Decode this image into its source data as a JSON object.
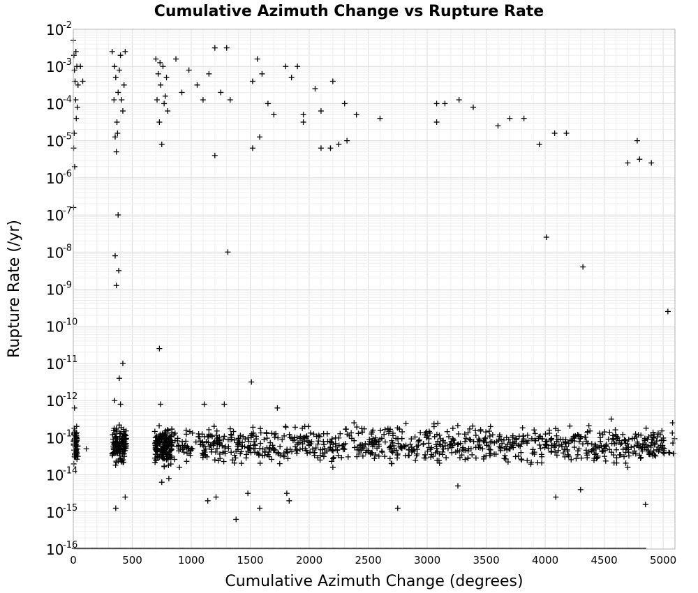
{
  "chart_data": {
    "type": "scatter",
    "title": "Cumulative Azimuth Change vs Rupture Rate",
    "xlabel": "Cumulative Azimuth Change (degrees)",
    "ylabel": "Rupture Rate (/yr)",
    "xlim": [
      0,
      5100
    ],
    "ylim_log10": [
      -16,
      -2
    ],
    "y_scale": "log",
    "grid": true,
    "marker": "plus",
    "marker_color": "#000000",
    "x_ticks": [
      "0",
      "500",
      "1000",
      "1500",
      "2000",
      "2500",
      "3000",
      "3500",
      "4000",
      "4500",
      "5000"
    ],
    "y_ticks": [
      {
        "base": "10",
        "exp": "-2"
      },
      {
        "base": "10",
        "exp": "-3"
      },
      {
        "base": "10",
        "exp": "-4"
      },
      {
        "base": "10",
        "exp": "-5"
      },
      {
        "base": "10",
        "exp": "-6"
      },
      {
        "base": "10",
        "exp": "-7"
      },
      {
        "base": "10",
        "exp": "-8"
      },
      {
        "base": "10",
        "exp": "-9"
      },
      {
        "base": "10",
        "exp": "-10"
      },
      {
        "base": "10",
        "exp": "-11"
      },
      {
        "base": "10",
        "exp": "-12"
      },
      {
        "base": "10",
        "exp": "-13"
      },
      {
        "base": "10",
        "exp": "-14"
      },
      {
        "base": "10",
        "exp": "-15"
      },
      {
        "base": "10",
        "exp": "-16"
      }
    ],
    "points_log10": [
      [
        0,
        -2.3
      ],
      [
        5,
        -2.7
      ],
      [
        10,
        -3.1
      ],
      [
        15,
        -3.4
      ],
      [
        20,
        -3.9
      ],
      [
        25,
        -4.4
      ],
      [
        8,
        -4.8
      ],
      [
        3,
        -5.2
      ],
      [
        12,
        -5.7
      ],
      [
        2,
        -6.8
      ],
      [
        30,
        -3.0
      ],
      [
        40,
        -3.5
      ],
      [
        60,
        -3.0
      ],
      [
        80,
        -3.4
      ],
      [
        22,
        -2.6
      ],
      [
        35,
        -4.1
      ],
      [
        330,
        -2.6
      ],
      [
        350,
        -3.0
      ],
      [
        360,
        -3.3
      ],
      [
        380,
        -3.7
      ],
      [
        400,
        -2.7
      ],
      [
        410,
        -3.9
      ],
      [
        420,
        -4.2
      ],
      [
        370,
        -4.5
      ],
      [
        390,
        -3.1
      ],
      [
        430,
        -3.5
      ],
      [
        440,
        -2.6
      ],
      [
        345,
        -3.9
      ],
      [
        355,
        -4.9
      ],
      [
        375,
        -4.8
      ],
      [
        365,
        -5.3
      ],
      [
        700,
        -2.8
      ],
      [
        720,
        -3.2
      ],
      [
        740,
        -3.5
      ],
      [
        760,
        -3.0
      ],
      [
        780,
        -3.8
      ],
      [
        800,
        -4.2
      ],
      [
        730,
        -4.5
      ],
      [
        750,
        -5.1
      ],
      [
        770,
        -4.0
      ],
      [
        790,
        -3.3
      ],
      [
        710,
        -3.9
      ],
      [
        735,
        -2.9
      ],
      [
        870,
        -2.8
      ],
      [
        920,
        -3.7
      ],
      [
        980,
        -3.1
      ],
      [
        1050,
        -3.5
      ],
      [
        1100,
        -3.9
      ],
      [
        1150,
        -3.2
      ],
      [
        1200,
        -2.5
      ],
      [
        1250,
        -3.7
      ],
      [
        1300,
        -2.5
      ],
      [
        1330,
        -3.9
      ],
      [
        1200,
        -5.4
      ],
      [
        1520,
        -3.4
      ],
      [
        1560,
        -2.8
      ],
      [
        1600,
        -3.2
      ],
      [
        1650,
        -4.0
      ],
      [
        1700,
        -4.3
      ],
      [
        1800,
        -3.0
      ],
      [
        1850,
        -3.3
      ],
      [
        1900,
        -3.0
      ],
      [
        1950,
        -4.3
      ],
      [
        2050,
        -3.6
      ],
      [
        2100,
        -4.2
      ],
      [
        2200,
        -3.4
      ],
      [
        2300,
        -4.0
      ],
      [
        2400,
        -4.3
      ],
      [
        1520,
        -5.2
      ],
      [
        1580,
        -4.9
      ],
      [
        1950,
        -4.5
      ],
      [
        2100,
        -5.2
      ],
      [
        2180,
        -5.2
      ],
      [
        2250,
        -5.1
      ],
      [
        2320,
        -5.0
      ],
      [
        3080,
        -4.0
      ],
      [
        3150,
        -4.0
      ],
      [
        3270,
        -3.9
      ],
      [
        3390,
        -4.1
      ],
      [
        3080,
        -4.5
      ],
      [
        2600,
        -4.4
      ],
      [
        3600,
        -4.6
      ],
      [
        3700,
        -4.4
      ],
      [
        3820,
        -4.4
      ],
      [
        3950,
        -5.1
      ],
      [
        4080,
        -4.8
      ],
      [
        4180,
        -4.8
      ],
      [
        4700,
        -5.6
      ],
      [
        4780,
        -5.0
      ],
      [
        4800,
        -5.5
      ],
      [
        4900,
        -5.6
      ],
      [
        380,
        -7.0
      ],
      [
        355,
        -8.1
      ],
      [
        385,
        -8.5
      ],
      [
        365,
        -8.9
      ],
      [
        1310,
        -8.0
      ],
      [
        4010,
        -7.6
      ],
      [
        4320,
        -8.4
      ],
      [
        5040,
        -9.6
      ],
      [
        730,
        -10.6
      ],
      [
        420,
        -11.0
      ],
      [
        390,
        -11.4
      ],
      [
        1510,
        -11.5
      ],
      [
        10,
        -12.2
      ],
      [
        350,
        -12.0
      ],
      [
        400,
        -12.1
      ],
      [
        740,
        -12.1
      ],
      [
        1110,
        -12.1
      ],
      [
        1280,
        -12.1
      ],
      [
        1730,
        -12.2
      ],
      [
        2380,
        -12.6
      ],
      [
        4560,
        -12.5
      ],
      [
        5080,
        -12.6
      ],
      [
        20,
        -13.5
      ],
      [
        110,
        -13.3
      ],
      [
        340,
        -13.4
      ],
      [
        420,
        -13.3
      ],
      [
        700,
        -13.6
      ],
      [
        760,
        -13.5
      ],
      [
        900,
        -13.8
      ],
      [
        1200,
        -13.6
      ],
      [
        1350,
        -13.6
      ],
      [
        1750,
        -13.7
      ],
      [
        2200,
        -13.8
      ],
      [
        2700,
        -13.7
      ],
      [
        3050,
        -13.5
      ],
      [
        3800,
        -13.6
      ],
      [
        4200,
        -13.5
      ],
      [
        4700,
        -13.8
      ],
      [
        5000,
        -13.4
      ],
      [
        750,
        -14.2
      ],
      [
        810,
        -14.1
      ],
      [
        1140,
        -14.7
      ],
      [
        1210,
        -14.6
      ],
      [
        1480,
        -14.5
      ],
      [
        1810,
        -14.5
      ],
      [
        1830,
        -14.7
      ],
      [
        2750,
        -14.9
      ],
      [
        4850,
        -14.8
      ],
      [
        4090,
        -14.6
      ],
      [
        440,
        -14.6
      ],
      [
        360,
        -14.9
      ],
      [
        1380,
        -15.2
      ],
      [
        1580,
        -14.9
      ],
      [
        3260,
        -14.3
      ],
      [
        4300,
        -14.4
      ]
    ],
    "dense_band_log10": -13.2,
    "floor_band_log10": -16
  }
}
